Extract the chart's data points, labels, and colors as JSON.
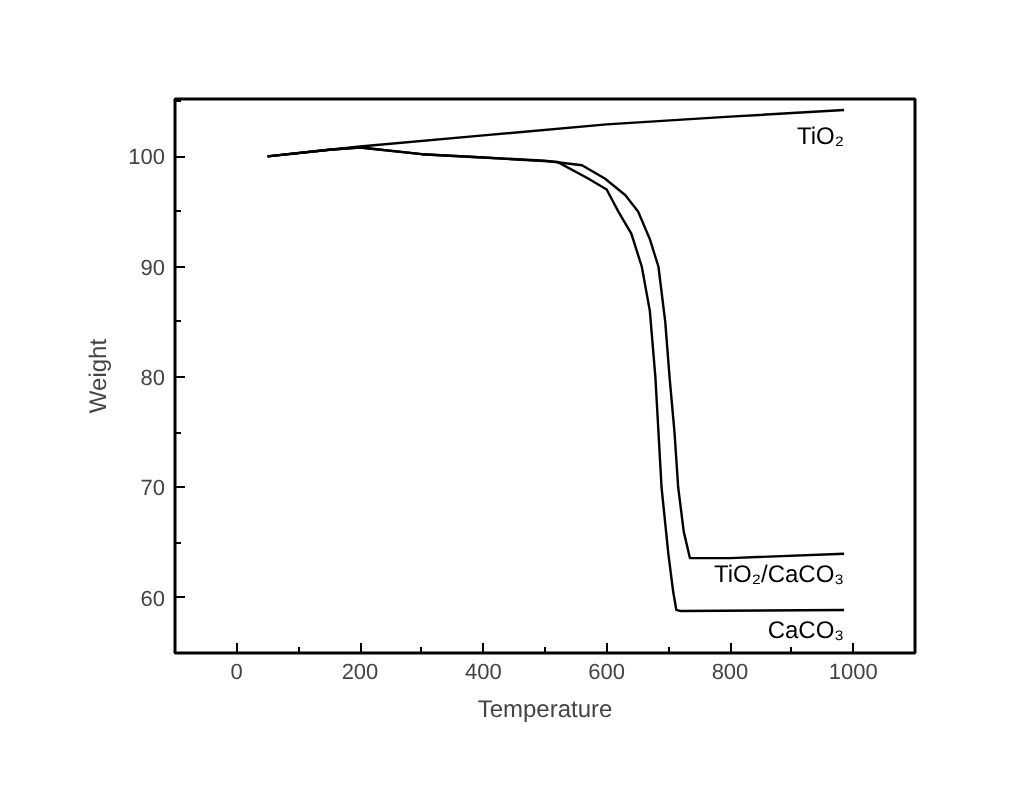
{
  "chart_data": {
    "type": "line",
    "xlabel": "Temperature",
    "ylabel": "Weight",
    "xlim": [
      -100,
      1100
    ],
    "ylim": [
      55,
      105.2
    ],
    "xticks": [
      0,
      200,
      400,
      600,
      800,
      1000
    ],
    "yticks": [
      60,
      70,
      80,
      90,
      100
    ],
    "grid": false,
    "marker": "none",
    "line_style": "solid",
    "series": [
      {
        "name": "TiO₂",
        "color": "#000000",
        "x": [
          50,
          200,
          400,
          600,
          800,
          985
        ],
        "values": [
          100,
          100.9,
          101.9,
          102.9,
          103.6,
          104.2
        ]
      },
      {
        "name": "TiO₂/CaCO₃",
        "color": "#000000",
        "x": [
          50,
          150,
          200,
          300,
          400,
          500,
          560,
          597,
          630,
          651,
          670,
          684,
          695,
          702,
          710,
          716,
          725,
          735,
          800,
          985
        ],
        "values": [
          100,
          100.6,
          100.8,
          100.2,
          99.9,
          99.6,
          99.2,
          98,
          96.5,
          95,
          92.5,
          90,
          85,
          80,
          75,
          70,
          66,
          63.6,
          63.6,
          64.0
        ]
      },
      {
        "name": "CaCO₃",
        "color": "#000000",
        "x": [
          50,
          150,
          200,
          300,
          400,
          520,
          570,
          600,
          619,
          640,
          657,
          670,
          679,
          684,
          689,
          700,
          708,
          713,
          720,
          985
        ],
        "values": [
          100,
          100.6,
          100.8,
          100.2,
          99.9,
          99.5,
          98,
          97,
          95,
          93,
          90,
          86,
          80,
          75,
          70,
          64,
          60.5,
          58.9,
          58.8,
          58.9
        ]
      }
    ]
  }
}
